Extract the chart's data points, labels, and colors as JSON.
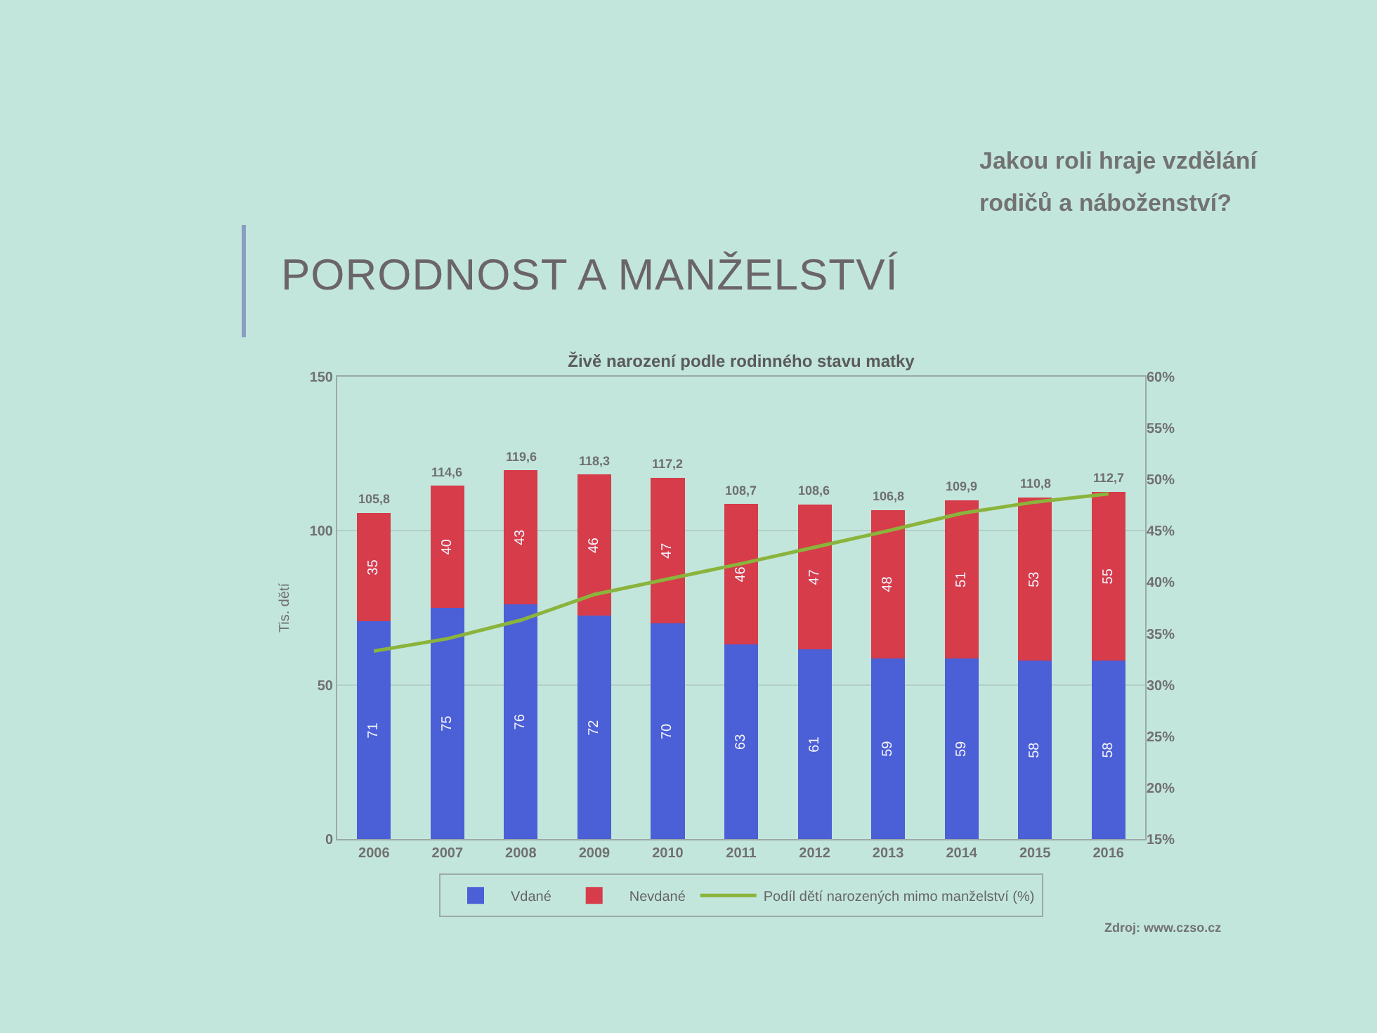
{
  "chart_data": {
    "type": "bar",
    "title": "PORODNOST A MANŽELSTVÍ",
    "subtitle": "Živě narození podle rodinného stavu matky",
    "ylabel": "Tis. dětí",
    "categories": [
      "2006",
      "2007",
      "2008",
      "2009",
      "2010",
      "2011",
      "2012",
      "2013",
      "2014",
      "2015",
      "2016"
    ],
    "stacked": true,
    "series": [
      {
        "name": "Vdané",
        "color": "#4b5fd6",
        "values": [
          70.6,
          75.1,
          76.2,
          72.4,
          70.0,
          63.2,
          61.5,
          58.7,
          58.6,
          57.8,
          57.9
        ],
        "value_labels": [
          "71",
          "75",
          "76",
          "72",
          "70",
          "63",
          "61",
          "59",
          "59",
          "58",
          "58"
        ]
      },
      {
        "name": "Nevdané",
        "color": "#d63c4a",
        "values": [
          35.2,
          39.5,
          43.4,
          45.9,
          47.2,
          45.5,
          47.1,
          48.1,
          51.3,
          53.0,
          54.8
        ],
        "value_labels": [
          "35",
          "40",
          "43",
          "46",
          "47",
          "46",
          "47",
          "48",
          "51",
          "53",
          "55"
        ]
      },
      {
        "name": "Podíl dětí narozených mimo manželství (%)",
        "type": "line",
        "axis": "y2",
        "color": "#8ab43c",
        "values": [
          33.3,
          34.5,
          36.3,
          38.8,
          40.3,
          41.8,
          43.4,
          45.0,
          46.7,
          47.8,
          48.6
        ]
      }
    ],
    "totals": [
      "105,8",
      "114,6",
      "119,6",
      "118,3",
      "117,2",
      "108,7",
      "108,6",
      "106,8",
      "109,9",
      "110,8",
      "112,7"
    ],
    "ylim": [
      0,
      150
    ],
    "yticks": [
      0,
      50,
      100,
      150
    ],
    "y2lim": [
      15,
      60
    ],
    "y2ticks": [
      {
        "value": 15,
        "label": "15%"
      },
      {
        "value": 20,
        "label": "20%"
      },
      {
        "value": 25,
        "label": "25%"
      },
      {
        "value": 30,
        "label": "30%"
      },
      {
        "value": 35,
        "label": "35%"
      },
      {
        "value": 40,
        "label": "40%"
      },
      {
        "value": 45,
        "label": "45%"
      },
      {
        "value": 50,
        "label": "50%"
      },
      {
        "value": 55,
        "label": "55%"
      },
      {
        "value": 60,
        "label": "60%"
      }
    ],
    "grid": "y",
    "legend": "bottom",
    "annotations": [
      "Jakou roli hraje vzdělání rodičů a náboženství?",
      "Zdroj: www.czso.cz"
    ]
  }
}
